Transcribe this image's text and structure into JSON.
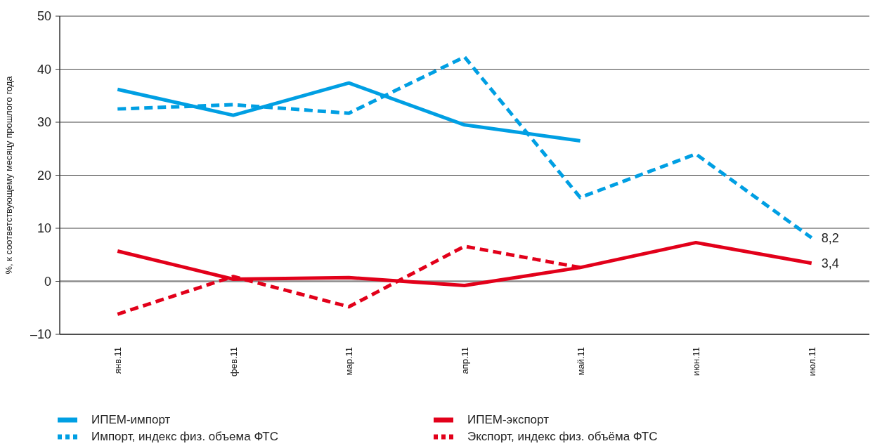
{
  "chart_data": {
    "type": "line",
    "ylabel": "%, к соответствующему месяцу прошлого года",
    "categories": [
      "янв.11",
      "фев.11",
      "мар.11",
      "апр.11",
      "май.11",
      "июн.11",
      "июл.11"
    ],
    "ylim": [
      -10,
      50
    ],
    "yticks": [
      {
        "value": -10,
        "label": "–10"
      },
      0,
      10,
      20,
      30,
      40,
      50
    ],
    "grid": "y",
    "legend": "bottom",
    "marker": "none",
    "ref_lines": [
      {
        "axis": "y",
        "value": 0,
        "color": "#8c8c8c"
      }
    ],
    "series": [
      {
        "name": "ИПЕМ-импорт",
        "color": "#009fe3",
        "line_style": "solid",
        "values": [
          36.2,
          31.3,
          37.4,
          29.5,
          26.5,
          null,
          null
        ]
      },
      {
        "name": "Импорт, индекс физ. объема ФТС",
        "color": "#009fe3",
        "line_style": "dashed",
        "values": [
          32.5,
          33.3,
          31.7,
          42.3,
          15.8,
          24,
          8.2
        ],
        "value_labels": [
          null,
          null,
          null,
          null,
          null,
          null,
          "8,2"
        ]
      },
      {
        "name": "ИПЕМ-экспорт",
        "color": "#e2001a",
        "line_style": "solid",
        "values": [
          5.7,
          0.4,
          0.7,
          -0.8,
          2.6,
          7.3,
          3.4
        ],
        "value_labels": [
          null,
          null,
          null,
          null,
          null,
          null,
          "3,4"
        ]
      },
      {
        "name": "Экспорт, индекс физ. объёма ФТС",
        "color": "#e2001a",
        "line_style": "dashed",
        "values": [
          -6.2,
          0.9,
          -4.8,
          6.6,
          2.6,
          null,
          null
        ]
      }
    ]
  }
}
